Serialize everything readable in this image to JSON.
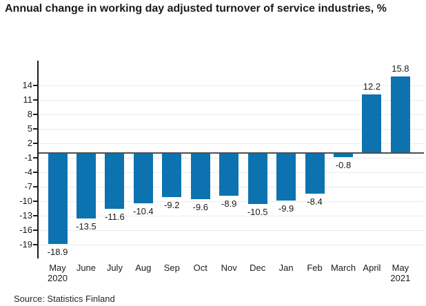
{
  "page": {
    "title": "Annual change in working day adjusted turnover of service industries, %",
    "source": "Source: Statistics Finland"
  },
  "chart_data": {
    "type": "bar",
    "title": "Annual change in working day adjusted turnover of service industries, %",
    "categories": [
      "May 2020",
      "June",
      "July",
      "Aug",
      "Sep",
      "Oct",
      "Nov",
      "Dec",
      "Jan",
      "Feb",
      "March",
      "April",
      "May 2021"
    ],
    "values": [
      -18.9,
      -13.5,
      -11.6,
      -10.4,
      -9.2,
      -9.6,
      -8.9,
      -10.5,
      -9.9,
      -8.4,
      -0.8,
      12.2,
      15.8
    ],
    "data_labels": [
      -18.9,
      -13.5,
      -11.6,
      -10.4,
      -9.2,
      -9.6,
      -8.9,
      -10.5,
      -9.9,
      -8.4,
      -0.8,
      12.2,
      15.8
    ],
    "xlabel": "",
    "ylabel": "",
    "y_ticks": [
      14,
      11,
      8,
      5,
      2,
      -1,
      -4,
      -7,
      -10,
      -13,
      -16,
      -19
    ],
    "ylim": [
      -21.9,
      19.1
    ],
    "grid": true,
    "legend_position": "none",
    "colors": {
      "bar": "#0d73b0",
      "grid": "#ebebeb",
      "zero_line": "#4d4d4d",
      "axis": "#1a1a1a",
      "text": "#1a1a1a",
      "background": "#ffffff"
    },
    "source": "Source: Statistics Finland"
  }
}
